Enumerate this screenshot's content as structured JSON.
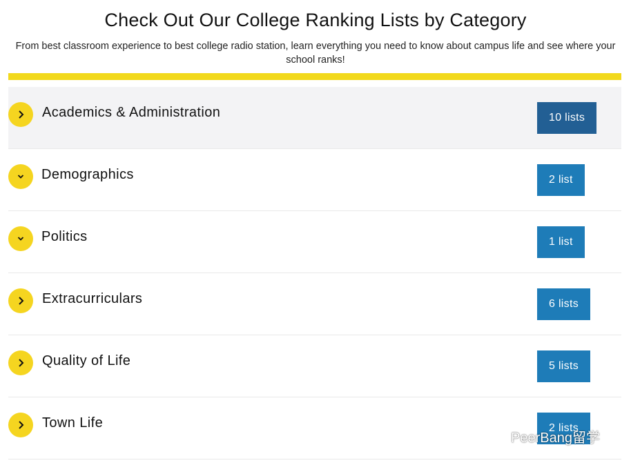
{
  "header": {
    "title": "Check Out Our College Ranking Lists by Category",
    "subtitle": "From best classroom experience to best college radio station, learn everything you need to know about campus life and see where your school ranks!"
  },
  "colors": {
    "accent": "#f2d91c",
    "button": "#1e7cb8",
    "button_active": "#225f94"
  },
  "categories": [
    {
      "label": "Academics & Administration",
      "count": "10 lists",
      "expanded_icon": "chevron-right-icon"
    },
    {
      "label": "Demographics",
      "count": "2 list",
      "expanded_icon": "chevron-down-icon"
    },
    {
      "label": "Politics",
      "count": "1 list",
      "expanded_icon": "chevron-down-icon"
    },
    {
      "label": "Extracurriculars",
      "count": "6 lists",
      "expanded_icon": "chevron-right-icon"
    },
    {
      "label": "Quality of Life",
      "count": "5 lists",
      "expanded_icon": "chevron-right-icon"
    },
    {
      "label": "Town Life",
      "count": "2 lists",
      "expanded_icon": "chevron-right-icon"
    }
  ],
  "watermark": {
    "text": "PeerBang留学",
    "icon": "wechat-icon"
  }
}
